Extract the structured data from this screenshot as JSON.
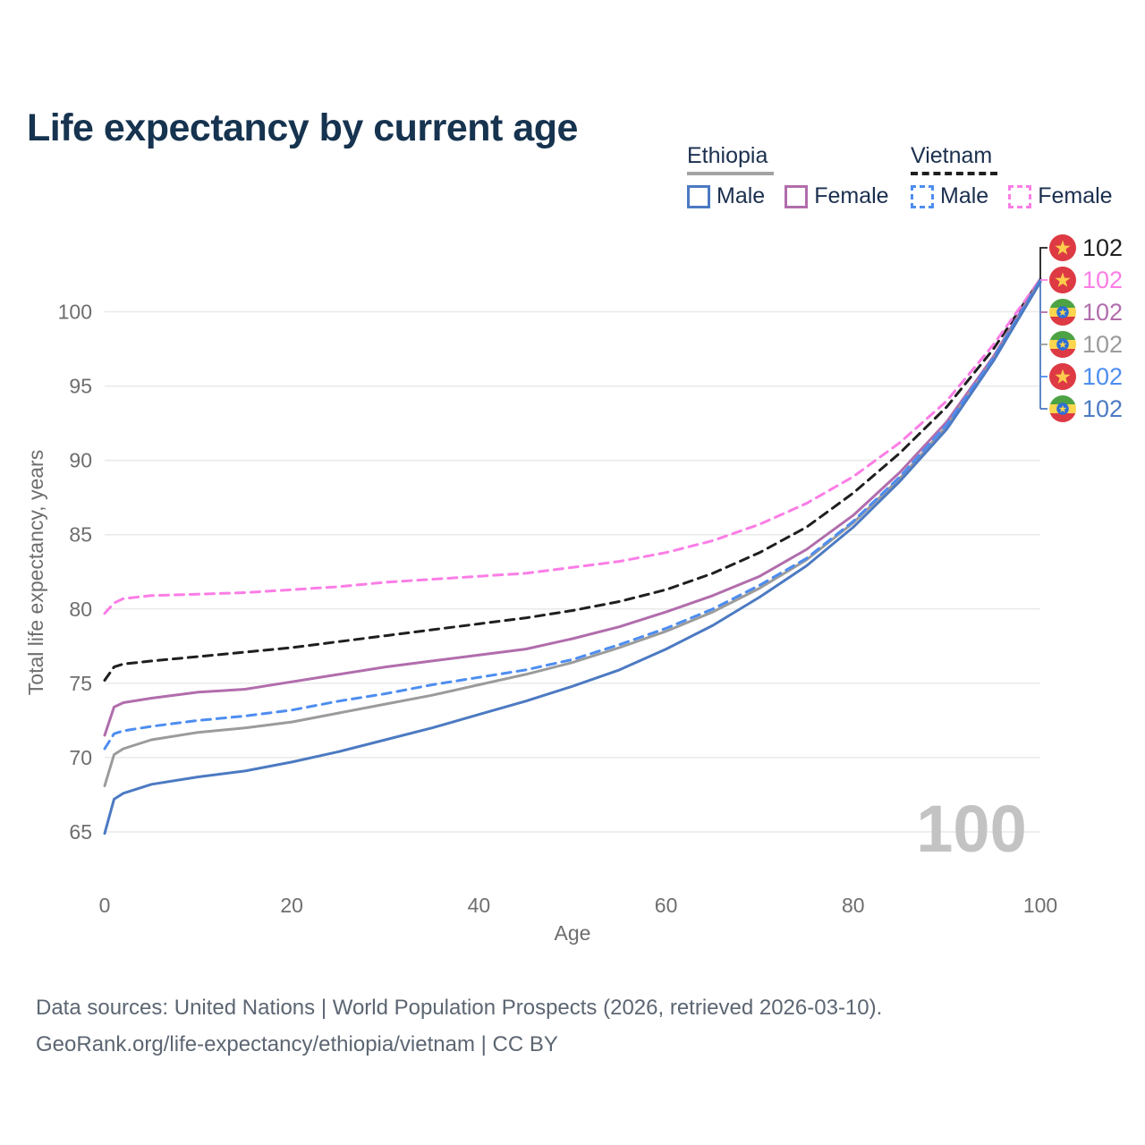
{
  "page": {
    "title": "Life expectancy by current age"
  },
  "legend": {
    "groups": [
      {
        "label": "Ethiopia",
        "line_style": "solid",
        "underline_color": "#a3a3a3",
        "items": [
          {
            "label": "Male",
            "color": "#4c7ac2",
            "dash": false
          },
          {
            "label": "Female",
            "color": "#b16dac",
            "dash": false
          }
        ]
      },
      {
        "label": "Vietnam",
        "line_style": "dashed",
        "underline_color": "#1f1f1f",
        "items": [
          {
            "label": "Male",
            "color": "#4d8df0",
            "dash": true
          },
          {
            "label": "Female",
            "color": "#fb7de6",
            "dash": true
          }
        ]
      }
    ]
  },
  "chart_data": {
    "type": "line",
    "title": "Life expectancy by current age",
    "xlabel": "Age",
    "ylabel": "Total life expectancy, years",
    "xlim": [
      0,
      100
    ],
    "ylim": [
      63,
      104
    ],
    "xticks": [
      0,
      20,
      40,
      60,
      80,
      100
    ],
    "yticks": [
      65,
      70,
      75,
      80,
      85,
      90,
      95,
      100
    ],
    "grid": "horizontal",
    "watermark": "100",
    "legend_position": "top-right",
    "series": [
      {
        "id": "vietnam-total",
        "name": "Vietnam (country)",
        "country": "Vietnam",
        "sex": "both",
        "color": "#1f1f1f",
        "line_style": "dashed",
        "flag": "vietnam",
        "end_label": "102",
        "points": [
          [
            0,
            75.2
          ],
          [
            1,
            76.1
          ],
          [
            2,
            76.3
          ],
          [
            5,
            76.5
          ],
          [
            10,
            76.8
          ],
          [
            15,
            77.1
          ],
          [
            20,
            77.4
          ],
          [
            25,
            77.8
          ],
          [
            30,
            78.2
          ],
          [
            35,
            78.6
          ],
          [
            40,
            79.0
          ],
          [
            45,
            79.4
          ],
          [
            50,
            79.9
          ],
          [
            55,
            80.5
          ],
          [
            60,
            81.3
          ],
          [
            65,
            82.4
          ],
          [
            70,
            83.8
          ],
          [
            75,
            85.5
          ],
          [
            80,
            87.8
          ],
          [
            85,
            90.5
          ],
          [
            90,
            93.6
          ],
          [
            95,
            97.5
          ],
          [
            100,
            102.2
          ]
        ]
      },
      {
        "id": "vietnam-female",
        "name": "Vietnam Female",
        "country": "Vietnam",
        "sex": "female",
        "color": "#fb7de6",
        "line_style": "dashed",
        "flag": "vietnam",
        "end_label": "102",
        "points": [
          [
            0,
            79.7
          ],
          [
            1,
            80.4
          ],
          [
            2,
            80.7
          ],
          [
            5,
            80.9
          ],
          [
            10,
            81.0
          ],
          [
            15,
            81.1
          ],
          [
            20,
            81.3
          ],
          [
            25,
            81.5
          ],
          [
            30,
            81.8
          ],
          [
            35,
            82.0
          ],
          [
            40,
            82.2
          ],
          [
            45,
            82.4
          ],
          [
            50,
            82.8
          ],
          [
            55,
            83.2
          ],
          [
            60,
            83.8
          ],
          [
            65,
            84.6
          ],
          [
            70,
            85.7
          ],
          [
            75,
            87.1
          ],
          [
            80,
            88.9
          ],
          [
            85,
            91.2
          ],
          [
            90,
            94.0
          ],
          [
            95,
            97.8
          ],
          [
            100,
            102.2
          ]
        ]
      },
      {
        "id": "ethiopia-female",
        "name": "Ethiopia Female",
        "country": "Ethiopia",
        "sex": "female",
        "color": "#b16dac",
        "line_style": "solid",
        "flag": "ethiopia",
        "end_label": "102",
        "points": [
          [
            0,
            71.5
          ],
          [
            1,
            73.4
          ],
          [
            2,
            73.7
          ],
          [
            5,
            74.0
          ],
          [
            10,
            74.4
          ],
          [
            15,
            74.6
          ],
          [
            20,
            75.1
          ],
          [
            25,
            75.6
          ],
          [
            30,
            76.1
          ],
          [
            35,
            76.5
          ],
          [
            40,
            76.9
          ],
          [
            45,
            77.3
          ],
          [
            50,
            78.0
          ],
          [
            55,
            78.8
          ],
          [
            60,
            79.8
          ],
          [
            65,
            80.9
          ],
          [
            70,
            82.2
          ],
          [
            75,
            84.0
          ],
          [
            80,
            86.3
          ],
          [
            85,
            89.2
          ],
          [
            90,
            92.6
          ],
          [
            95,
            97.0
          ],
          [
            100,
            102.2
          ]
        ]
      },
      {
        "id": "ethiopia-total",
        "name": "Ethiopia (country)",
        "country": "Ethiopia",
        "sex": "both",
        "color": "#9b9b9b",
        "line_style": "solid",
        "flag": "ethiopia",
        "end_label": "102",
        "points": [
          [
            0,
            68.1
          ],
          [
            1,
            70.2
          ],
          [
            2,
            70.6
          ],
          [
            5,
            71.2
          ],
          [
            10,
            71.7
          ],
          [
            15,
            72.0
          ],
          [
            20,
            72.4
          ],
          [
            25,
            73.0
          ],
          [
            30,
            73.6
          ],
          [
            35,
            74.2
          ],
          [
            40,
            74.9
          ],
          [
            45,
            75.6
          ],
          [
            50,
            76.4
          ],
          [
            55,
            77.4
          ],
          [
            60,
            78.5
          ],
          [
            65,
            79.8
          ],
          [
            70,
            81.4
          ],
          [
            75,
            83.3
          ],
          [
            80,
            85.8
          ],
          [
            85,
            88.8
          ],
          [
            90,
            92.3
          ],
          [
            95,
            96.8
          ],
          [
            100,
            102.1
          ]
        ]
      },
      {
        "id": "vietnam-male",
        "name": "Vietnam Male",
        "country": "Vietnam",
        "sex": "male",
        "color": "#4d8df0",
        "line_style": "dashed",
        "flag": "vietnam",
        "end_label": "102",
        "points": [
          [
            0,
            70.6
          ],
          [
            1,
            71.6
          ],
          [
            2,
            71.8
          ],
          [
            5,
            72.1
          ],
          [
            10,
            72.5
          ],
          [
            15,
            72.8
          ],
          [
            20,
            73.2
          ],
          [
            25,
            73.8
          ],
          [
            30,
            74.3
          ],
          [
            35,
            74.9
          ],
          [
            40,
            75.4
          ],
          [
            45,
            75.9
          ],
          [
            50,
            76.6
          ],
          [
            55,
            77.6
          ],
          [
            60,
            78.7
          ],
          [
            65,
            80.0
          ],
          [
            70,
            81.6
          ],
          [
            75,
            83.4
          ],
          [
            80,
            85.9
          ],
          [
            85,
            88.9
          ],
          [
            90,
            92.4
          ],
          [
            95,
            96.9
          ],
          [
            100,
            102.1
          ]
        ]
      },
      {
        "id": "ethiopia-male",
        "name": "Ethiopia Male",
        "country": "Ethiopia",
        "sex": "male",
        "color": "#4c7ac2",
        "line_style": "solid",
        "flag": "ethiopia",
        "end_label": "102",
        "points": [
          [
            0,
            64.9
          ],
          [
            1,
            67.2
          ],
          [
            2,
            67.6
          ],
          [
            5,
            68.2
          ],
          [
            10,
            68.7
          ],
          [
            15,
            69.1
          ],
          [
            20,
            69.7
          ],
          [
            25,
            70.4
          ],
          [
            30,
            71.2
          ],
          [
            35,
            72.0
          ],
          [
            40,
            72.9
          ],
          [
            45,
            73.8
          ],
          [
            50,
            74.8
          ],
          [
            55,
            75.9
          ],
          [
            60,
            77.3
          ],
          [
            65,
            78.9
          ],
          [
            70,
            80.8
          ],
          [
            75,
            82.9
          ],
          [
            80,
            85.5
          ],
          [
            85,
            88.6
          ],
          [
            90,
            92.1
          ],
          [
            95,
            96.7
          ],
          [
            100,
            102.0
          ]
        ]
      }
    ]
  },
  "footer": {
    "line1": "Data sources: United Nations | World Population Prospects (2026, retrieved 2026-03-10).",
    "line2": "GeoRank.org/life-expectancy/ethiopia/vietnam | CC BY"
  }
}
